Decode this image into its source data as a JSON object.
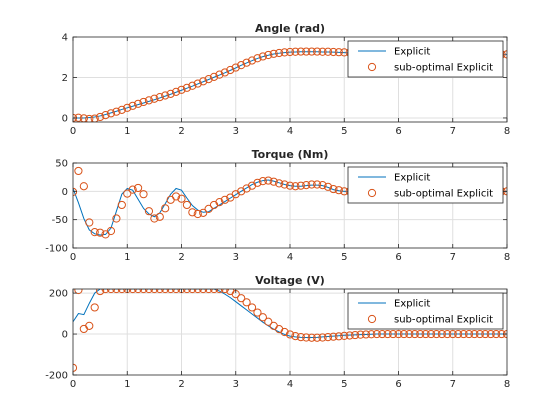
{
  "colors": {
    "explicit_line": "#0072BD",
    "suboptimal_marker": "#D95319",
    "grid": "#DFDFDF",
    "axes": "#262626"
  },
  "chart_data": [
    {
      "type": "line",
      "title": "Angle (rad)",
      "xlabel": "",
      "ylabel": "",
      "xlim": [
        0,
        8
      ],
      "ylim": [
        -0.2,
        4
      ],
      "xticks": [
        0,
        1,
        2,
        3,
        4,
        5,
        6,
        7,
        8
      ],
      "yticks": [
        0,
        2,
        4
      ],
      "grid": true,
      "legend": {
        "position": "top-right",
        "entries": [
          "Explicit",
          "sub-optimal Explicit"
        ]
      },
      "x": [
        0,
        0.1,
        0.2,
        0.3,
        0.4,
        0.5,
        0.6,
        0.7,
        0.8,
        0.9,
        1.0,
        1.1,
        1.2,
        1.3,
        1.4,
        1.5,
        1.6,
        1.7,
        1.8,
        1.9,
        2.0,
        2.1,
        2.2,
        2.3,
        2.4,
        2.5,
        2.6,
        2.7,
        2.8,
        2.9,
        3.0,
        3.1,
        3.2,
        3.3,
        3.4,
        3.5,
        3.6,
        3.7,
        3.8,
        3.9,
        4.0,
        4.1,
        4.2,
        4.3,
        4.4,
        4.5,
        4.6,
        4.7,
        4.8,
        4.9,
        5.0,
        5.1,
        5.2,
        5.3,
        5.4,
        5.5,
        5.6,
        5.7,
        5.8,
        5.9,
        6.0,
        6.1,
        6.2,
        6.3,
        6.4,
        6.5,
        6.6,
        6.7,
        6.8,
        6.9,
        7.0,
        7.1,
        7.2,
        7.3,
        7.4,
        7.5,
        7.6,
        7.7,
        7.8,
        7.9,
        8.0
      ],
      "series": [
        {
          "name": "Explicit",
          "style": "line",
          "values": [
            0,
            0,
            0,
            0.02,
            0.05,
            0.1,
            0.17,
            0.25,
            0.33,
            0.42,
            0.5,
            0.58,
            0.66,
            0.74,
            0.82,
            0.9,
            0.99,
            1.08,
            1.17,
            1.27,
            1.37,
            1.47,
            1.57,
            1.68,
            1.79,
            1.9,
            2.01,
            2.12,
            2.23,
            2.35,
            2.47,
            2.6,
            2.72,
            2.83,
            2.94,
            3.03,
            3.1,
            3.16,
            3.2,
            3.23,
            3.25,
            3.26,
            3.27,
            3.27,
            3.27,
            3.27,
            3.26,
            3.26,
            3.25,
            3.24,
            3.23,
            3.22,
            3.21,
            3.2,
            3.19,
            3.18,
            3.18,
            3.17,
            3.17,
            3.16,
            3.16,
            3.16,
            3.15,
            3.15,
            3.15,
            3.15,
            3.15,
            3.15,
            3.14,
            3.14,
            3.14,
            3.14,
            3.14,
            3.14,
            3.14,
            3.14,
            3.14,
            3.14,
            3.14,
            3.14,
            3.14
          ]
        },
        {
          "name": "sub-optimal Explicit",
          "style": "marker",
          "values": [
            0,
            0.01,
            -0.02,
            -0.05,
            -0.03,
            0.05,
            0.14,
            0.23,
            0.31,
            0.4,
            0.5,
            0.6,
            0.7,
            0.79,
            0.87,
            0.95,
            1.03,
            1.11,
            1.19,
            1.29,
            1.39,
            1.49,
            1.59,
            1.7,
            1.81,
            1.92,
            2.03,
            2.14,
            2.25,
            2.37,
            2.49,
            2.61,
            2.73,
            2.84,
            2.95,
            3.04,
            3.11,
            3.17,
            3.21,
            3.24,
            3.26,
            3.27,
            3.28,
            3.28,
            3.28,
            3.28,
            3.27,
            3.27,
            3.26,
            3.25,
            3.24,
            3.23,
            3.22,
            3.21,
            3.2,
            3.19,
            3.18,
            3.18,
            3.17,
            3.17,
            3.16,
            3.16,
            3.16,
            3.15,
            3.15,
            3.15,
            3.15,
            3.15,
            3.15,
            3.14,
            3.14,
            3.14,
            3.14,
            3.14,
            3.14,
            3.14,
            3.14,
            3.14,
            3.14,
            3.14,
            3.14
          ]
        }
      ]
    },
    {
      "type": "line",
      "title": "Torque (Nm)",
      "xlabel": "",
      "ylabel": "",
      "xlim": [
        0,
        8
      ],
      "ylim": [
        -100,
        50
      ],
      "xticks": [
        0,
        1,
        2,
        3,
        4,
        5,
        6,
        7,
        8
      ],
      "yticks": [
        -100,
        -50,
        0,
        50
      ],
      "grid": true,
      "legend": {
        "position": "top-right",
        "entries": [
          "Explicit",
          "sub-optimal Explicit"
        ]
      },
      "x": [
        0,
        0.1,
        0.2,
        0.3,
        0.4,
        0.5,
        0.6,
        0.7,
        0.8,
        0.9,
        1.0,
        1.1,
        1.2,
        1.3,
        1.4,
        1.5,
        1.6,
        1.7,
        1.8,
        1.9,
        2.0,
        2.1,
        2.2,
        2.3,
        2.4,
        2.5,
        2.6,
        2.7,
        2.8,
        2.9,
        3.0,
        3.1,
        3.2,
        3.3,
        3.4,
        3.5,
        3.6,
        3.7,
        3.8,
        3.9,
        4.0,
        4.1,
        4.2,
        4.3,
        4.4,
        4.5,
        4.6,
        4.7,
        4.8,
        4.9,
        5.0,
        5.1,
        5.2,
        5.3,
        5.4,
        5.5,
        5.6,
        5.7,
        5.8,
        5.9,
        6.0,
        6.1,
        6.2,
        6.3,
        6.4,
        6.5,
        6.6,
        6.7,
        6.8,
        6.9,
        7.0,
        7.1,
        7.2,
        7.3,
        7.4,
        7.5,
        7.6,
        7.7,
        7.8,
        7.9,
        8.0
      ],
      "series": [
        {
          "name": "Explicit",
          "style": "line",
          "values": [
            5,
            -20,
            -48,
            -68,
            -75,
            -77,
            -76,
            -65,
            -35,
            -5,
            5,
            2,
            -14,
            -30,
            -40,
            -45,
            -38,
            -22,
            -5,
            5,
            2,
            -12,
            -25,
            -33,
            -37,
            -36,
            -30,
            -24,
            -18,
            -12,
            -6,
            0,
            6,
            12,
            16,
            19,
            20,
            18,
            15,
            12,
            10,
            9,
            9,
            10,
            11,
            11,
            10,
            7,
            3,
            1,
            0,
            0,
            0,
            0,
            0,
            0,
            0,
            0,
            0,
            0,
            0,
            0,
            0,
            0,
            0,
            0,
            0,
            0,
            0,
            0,
            0,
            0,
            0,
            0,
            0,
            0,
            0,
            0,
            0,
            0,
            0
          ]
        },
        {
          "name": "sub-optimal Explicit",
          "style": "marker",
          "values": [
            -1,
            36,
            9,
            -55,
            -72,
            -73,
            -76,
            -70,
            -48,
            -24,
            -4,
            3,
            6,
            -5,
            -35,
            -48,
            -45,
            -30,
            -15,
            -9,
            -13,
            -24,
            -37,
            -40,
            -38,
            -31,
            -24,
            -19,
            -15,
            -11,
            -5,
            0,
            5,
            10,
            15,
            18,
            19,
            17,
            14,
            12,
            10,
            9,
            10,
            11,
            12,
            12,
            11,
            8,
            4,
            2,
            0,
            0,
            0,
            0,
            0,
            0,
            0,
            0,
            0,
            0,
            0,
            0,
            0,
            0,
            0,
            0,
            0,
            0,
            0,
            0,
            0,
            0,
            0,
            0,
            0,
            0,
            0,
            0,
            0,
            0,
            0
          ]
        }
      ]
    },
    {
      "type": "line",
      "title": "Voltage (V)",
      "xlabel": "",
      "ylabel": "",
      "xlim": [
        0,
        8
      ],
      "ylim": [
        -200,
        220
      ],
      "xticks": [
        0,
        1,
        2,
        3,
        4,
        5,
        6,
        7,
        8
      ],
      "yticks": [
        -200,
        0,
        200
      ],
      "grid": true,
      "legend": {
        "position": "top-right",
        "entries": [
          "Explicit",
          "sub-optimal Explicit"
        ]
      },
      "x": [
        0,
        0.1,
        0.2,
        0.3,
        0.4,
        0.5,
        0.6,
        0.7,
        0.8,
        0.9,
        1.0,
        1.1,
        1.2,
        1.3,
        1.4,
        1.5,
        1.6,
        1.7,
        1.8,
        1.9,
        2.0,
        2.1,
        2.2,
        2.3,
        2.4,
        2.5,
        2.6,
        2.7,
        2.8,
        2.9,
        3.0,
        3.1,
        3.2,
        3.3,
        3.4,
        3.5,
        3.6,
        3.7,
        3.8,
        3.9,
        4.0,
        4.1,
        4.2,
        4.3,
        4.4,
        4.5,
        4.6,
        4.7,
        4.8,
        4.9,
        5.0,
        5.1,
        5.2,
        5.3,
        5.4,
        5.5,
        5.6,
        5.7,
        5.8,
        5.9,
        6.0,
        6.1,
        6.2,
        6.3,
        6.4,
        6.5,
        6.6,
        6.7,
        6.8,
        6.9,
        7.0,
        7.1,
        7.2,
        7.3,
        7.4,
        7.5,
        7.6,
        7.7,
        7.8,
        7.9,
        8.0
      ],
      "series": [
        {
          "name": "Explicit",
          "style": "line",
          "values": [
            60,
            100,
            95,
            150,
            200,
            220,
            220,
            220,
            220,
            220,
            220,
            220,
            220,
            220,
            220,
            220,
            220,
            220,
            220,
            220,
            220,
            220,
            220,
            220,
            220,
            220,
            220,
            210,
            195,
            178,
            158,
            138,
            118,
            98,
            78,
            58,
            40,
            24,
            10,
            -2,
            -10,
            -14,
            -16,
            -17,
            -17,
            -16,
            -14,
            -12,
            -10,
            -8,
            -6,
            -5,
            -4,
            -3,
            -2,
            -1,
            0,
            0,
            0,
            0,
            0,
            0,
            0,
            0,
            0,
            0,
            0,
            0,
            0,
            0,
            0,
            0,
            0,
            0,
            0,
            0,
            0,
            0,
            0,
            0,
            0
          ]
        },
        {
          "name": "sub-optimal Explicit",
          "style": "marker",
          "values": [
            -165,
            215,
            25,
            40,
            130,
            210,
            220,
            220,
            220,
            220,
            220,
            220,
            220,
            220,
            220,
            220,
            220,
            220,
            220,
            220,
            220,
            220,
            220,
            220,
            220,
            220,
            220,
            220,
            220,
            210,
            195,
            175,
            155,
            130,
            105,
            82,
            60,
            40,
            24,
            10,
            -2,
            -10,
            -15,
            -17,
            -18,
            -18,
            -17,
            -15,
            -13,
            -11,
            -9,
            -7,
            -5,
            -3,
            -2,
            -1,
            0,
            0,
            0,
            0,
            0,
            0,
            0,
            0,
            0,
            0,
            0,
            0,
            0,
            0,
            0,
            0,
            0,
            0,
            0,
            0,
            0,
            0,
            0,
            0,
            0
          ]
        }
      ]
    }
  ]
}
